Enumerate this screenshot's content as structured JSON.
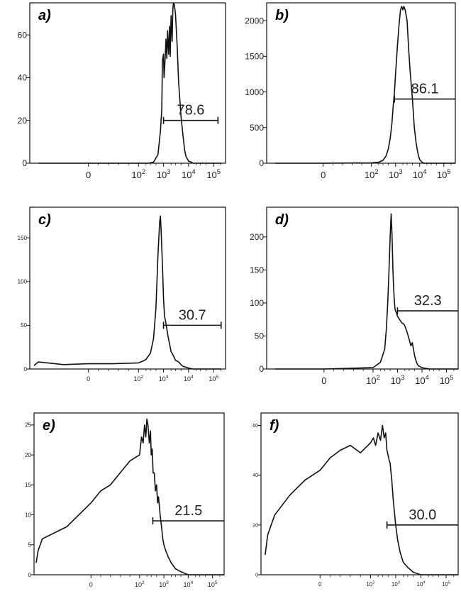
{
  "chart_data": [
    {
      "type": "line",
      "panel": "a)",
      "x_scale": "biexponential",
      "x_ticks": [
        "0",
        "10^2",
        "10^3",
        "10^4",
        "10^5"
      ],
      "y_ticks": [
        "0",
        "20",
        "40",
        "60"
      ],
      "ylim": [
        0,
        75
      ],
      "gate": {
        "label": "78.6",
        "from": 1000,
        "to": 150000,
        "level": 20
      },
      "x": [
        -100,
        0,
        100,
        250,
        400,
        600,
        750,
        850,
        900,
        1000,
        1050,
        1150,
        1250,
        1350,
        1450,
        1600,
        1750,
        1850,
        2000,
        2200,
        2350,
        2500,
        2700,
        3000,
        3500,
        4000,
        5000,
        6000,
        7000,
        8000,
        10000,
        13000,
        15000,
        30000,
        100000,
        200000
      ],
      "y": [
        0,
        0,
        0,
        0,
        0.5,
        4,
        15,
        25,
        48,
        51,
        40,
        48,
        58,
        49,
        62,
        51,
        64,
        50,
        69,
        57,
        72,
        75,
        74,
        70,
        55,
        38,
        22,
        13,
        6,
        3,
        1,
        0.5,
        0,
        0,
        0,
        0
      ]
    },
    {
      "type": "line",
      "panel": "b)",
      "x_scale": "biexponential",
      "x_ticks": [
        "0",
        "10^2",
        "10^3",
        "10^4",
        "10^5"
      ],
      "y_ticks": [
        "0",
        "500",
        "1000",
        "1500",
        "2000"
      ],
      "ylim": [
        0,
        2250
      ],
      "gate": {
        "label": "86.1",
        "from": 900,
        "to": 300000,
        "level": 900
      },
      "x": [
        -100,
        0,
        100,
        200,
        300,
        400,
        500,
        600,
        700,
        800,
        900,
        1000,
        1200,
        1400,
        1600,
        1800,
        2000,
        2200,
        2500,
        3000,
        3500,
        4000,
        5000,
        6000,
        7000,
        8000,
        9000,
        10000,
        12000,
        15000,
        30000,
        100000,
        300000
      ],
      "y": [
        0,
        0,
        5,
        15,
        40,
        100,
        200,
        350,
        550,
        800,
        1000,
        1250,
        1650,
        1950,
        2150,
        2200,
        2150,
        2200,
        2150,
        2000,
        1600,
        1300,
        900,
        500,
        300,
        180,
        100,
        50,
        20,
        0,
        0,
        0,
        0
      ]
    },
    {
      "type": "line",
      "panel": "c)",
      "x_scale": "biexponential",
      "x_ticks": [
        "0",
        "10^2",
        "10^3",
        "10^4",
        "10^5"
      ],
      "y_ticks": [
        "0",
        "50",
        "100",
        "150"
      ],
      "ylim": [
        0,
        185
      ],
      "gate": {
        "label": "30.7",
        "from": 1000,
        "to": 200000,
        "level": 50
      },
      "x": [
        -150,
        -100,
        -50,
        0,
        50,
        100,
        150,
        200,
        300,
        400,
        500,
        600,
        700,
        750,
        800,
        900,
        1000,
        1100,
        1200,
        1500,
        2000,
        2500,
        3000,
        4000,
        5000,
        6000,
        8000,
        10000,
        15000,
        100000,
        200000
      ],
      "y": [
        4,
        8,
        5,
        6,
        6,
        7,
        9,
        11,
        18,
        35,
        70,
        130,
        168,
        175,
        160,
        120,
        80,
        60,
        55,
        38,
        20,
        15,
        10,
        8,
        5,
        3,
        2,
        1,
        0,
        0,
        0
      ]
    },
    {
      "type": "line",
      "panel": "d)",
      "x_scale": "biexponential",
      "x_ticks": [
        "0",
        "10^2",
        "10^3",
        "10^4",
        "10^5"
      ],
      "y_ticks": [
        "0",
        "50",
        "100",
        "150",
        "200"
      ],
      "ylim": [
        0,
        245
      ],
      "gate": {
        "label": "32.3",
        "from": 1000,
        "to": 300000,
        "level": 88
      },
      "x": [
        -100,
        0,
        100,
        200,
        300,
        350,
        400,
        450,
        500,
        550,
        600,
        650,
        700,
        750,
        800,
        900,
        1000,
        1200,
        1500,
        1800,
        2000,
        2500,
        3000,
        3500,
        4000,
        4500,
        5000,
        6000,
        7000,
        10000,
        20000,
        100000,
        300000
      ],
      "y": [
        0,
        0,
        2,
        10,
        30,
        60,
        100,
        150,
        200,
        235,
        200,
        150,
        120,
        100,
        90,
        85,
        80,
        75,
        70,
        68,
        65,
        55,
        45,
        35,
        40,
        30,
        20,
        10,
        5,
        2,
        0,
        0,
        0
      ]
    },
    {
      "type": "line",
      "panel": "e)",
      "x_scale": "biexponential",
      "x_ticks": [
        "0",
        "10^2",
        "10^3",
        "10^4",
        "10^5"
      ],
      "y_ticks": [
        "0",
        "5",
        "10",
        "15",
        "20",
        "25"
      ],
      "ylim": [
        0,
        27
      ],
      "gate": {
        "label": "21.5",
        "from": 350,
        "to": 300000,
        "level": 9
      },
      "x": [
        -180,
        -150,
        -100,
        -50,
        0,
        20,
        40,
        60,
        80,
        100,
        120,
        140,
        160,
        180,
        200,
        220,
        250,
        280,
        300,
        330,
        360,
        400,
        450,
        500,
        550,
        600,
        700,
        800,
        900,
        1000,
        1200,
        1500,
        2000,
        3000,
        5000,
        10000,
        20000,
        100000,
        300000
      ],
      "y": [
        2,
        4,
        6,
        8,
        12,
        14,
        15,
        17,
        19,
        20,
        23,
        22,
        25,
        23,
        26,
        25,
        22,
        24,
        20,
        21,
        17,
        17,
        14,
        15,
        12,
        13,
        10,
        8,
        6,
        5,
        4,
        3,
        2,
        1,
        0.5,
        0,
        0,
        0,
        0
      ]
    },
    {
      "type": "line",
      "panel": "f)",
      "x_scale": "biexponential",
      "x_ticks": [
        "0",
        "10^2",
        "10^3",
        "10^4",
        "10^5"
      ],
      "y_ticks": [
        "0",
        "20",
        "40",
        "60"
      ],
      "ylim": [
        0,
        65
      ],
      "gate": {
        "label": "30.0",
        "from": 450,
        "to": 300000,
        "level": 20
      },
      "x": [
        -150,
        -120,
        -90,
        -60,
        -30,
        0,
        20,
        40,
        60,
        80,
        100,
        130,
        160,
        200,
        250,
        300,
        350,
        400,
        450,
        500,
        550,
        600,
        700,
        800,
        1000,
        1200,
        1500,
        2000,
        3000,
        5000,
        10000,
        20000,
        100000,
        300000
      ],
      "y": [
        8,
        16,
        24,
        32,
        38,
        42,
        47,
        50,
        52,
        49,
        53,
        55,
        52,
        57,
        54,
        60,
        55,
        57,
        50,
        48,
        46,
        45,
        38,
        30,
        20,
        14,
        9,
        5,
        3,
        1,
        0,
        0,
        0,
        0
      ]
    }
  ]
}
